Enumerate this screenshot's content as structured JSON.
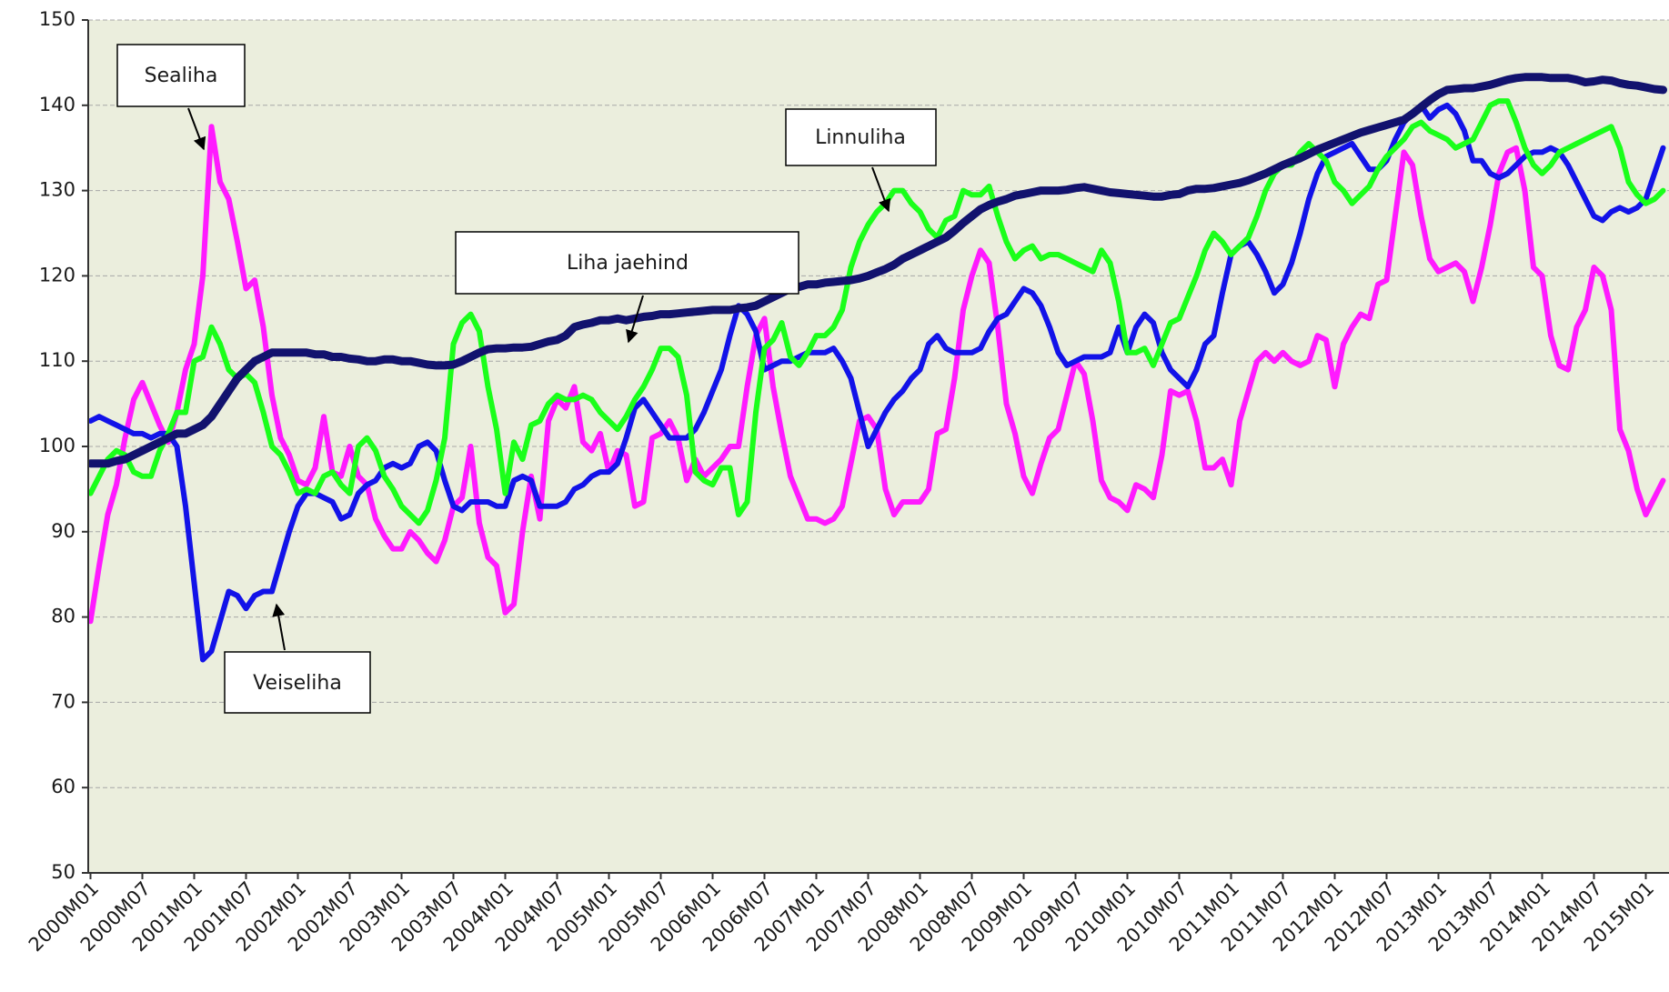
{
  "chart_data": {
    "type": "line",
    "categories": [
      "2000M01",
      null,
      null,
      null,
      null,
      null,
      "2000M07",
      null,
      null,
      null,
      null,
      null,
      "2001M01",
      null,
      null,
      null,
      null,
      null,
      "2001M07",
      null,
      null,
      null,
      null,
      null,
      "2002M01",
      null,
      null,
      null,
      null,
      null,
      "2002M07",
      null,
      null,
      null,
      null,
      null,
      "2003M01",
      null,
      null,
      null,
      null,
      null,
      "2003M07",
      null,
      null,
      null,
      null,
      null,
      "2004M01",
      null,
      null,
      null,
      null,
      null,
      "2004M07",
      null,
      null,
      null,
      null,
      null,
      "2005M01",
      null,
      null,
      null,
      null,
      null,
      "2005M07",
      null,
      null,
      null,
      null,
      null,
      "2006M01",
      null,
      null,
      null,
      null,
      null,
      "2006M07",
      null,
      null,
      null,
      null,
      null,
      "2007M01",
      null,
      null,
      null,
      null,
      null,
      "2007M07",
      null,
      null,
      null,
      null,
      null,
      "2008M01",
      null,
      null,
      null,
      null,
      null,
      "2008M07",
      null,
      null,
      null,
      null,
      null,
      "2009M01",
      null,
      null,
      null,
      null,
      null,
      "2009M07",
      null,
      null,
      null,
      null,
      null,
      "2010M01",
      null,
      null,
      null,
      null,
      null,
      "2010M07",
      null,
      null,
      null,
      null,
      null,
      "2011M01",
      null,
      null,
      null,
      null,
      null,
      "2011M07",
      null,
      null,
      null,
      null,
      null,
      "2012M01",
      null,
      null,
      null,
      null,
      null,
      "2012M07",
      null,
      null,
      null,
      null,
      null,
      "2013M01",
      null,
      null,
      null,
      null,
      null,
      "2013M07",
      null,
      null,
      null,
      null,
      null,
      "2014M01",
      null,
      null,
      null,
      null,
      null,
      "2014M07",
      null,
      null,
      null,
      null,
      null,
      "2015M01",
      null,
      null
    ],
    "series": [
      {
        "name": "Sealiha",
        "color": "#ff1aff",
        "values": [
          79.5,
          86,
          92,
          95.5,
          101,
          105.5,
          107.5,
          105,
          102.5,
          100.5,
          104,
          109,
          112,
          120,
          137.5,
          131,
          129,
          124,
          118.5,
          119.5,
          114,
          106,
          101,
          99,
          96,
          95.5,
          97.5,
          103.5,
          97,
          96.5,
          100,
          96.5,
          95.5,
          91.5,
          89.5,
          88,
          88,
          90,
          89,
          87.5,
          86.5,
          89,
          93,
          94,
          100,
          91,
          87,
          86,
          80.5,
          81.5,
          90,
          96.5,
          91.5,
          103,
          105.5,
          104.5,
          107,
          100.5,
          99.5,
          101.5,
          97,
          99.5,
          99,
          93,
          93.5,
          101,
          101.5,
          103,
          101,
          96,
          98.5,
          96.5,
          97.5,
          98.5,
          100,
          100,
          107,
          113,
          115,
          107,
          101.5,
          96.5,
          94,
          91.5,
          91.5,
          91,
          91.5,
          93,
          98,
          103,
          103.5,
          102,
          95,
          92,
          93.5,
          93.5,
          93.5,
          95,
          101.5,
          102,
          108,
          116,
          120,
          123,
          121.5,
          114,
          105,
          101.5,
          96.5,
          94.5,
          98,
          101,
          102,
          106,
          110,
          108.5,
          103,
          96,
          94,
          93.5,
          92.5,
          95.5,
          95,
          94,
          99,
          106.5,
          106,
          106.5,
          103,
          97.5,
          97.5,
          98.5,
          95.5,
          103,
          106.5,
          110,
          111,
          110,
          111,
          110,
          109.5,
          110,
          113,
          112.5,
          107,
          112,
          114,
          115.5,
          115,
          119,
          119.5,
          127,
          134.5,
          133,
          127,
          122,
          120.5,
          121,
          121.5,
          120.5,
          117,
          121,
          126,
          132,
          134.5,
          135,
          130,
          121,
          120,
          113,
          109.5,
          109,
          114,
          116,
          121,
          120,
          116,
          102,
          99.5,
          95,
          92,
          94,
          96
        ]
      },
      {
        "name": "Veiseliha",
        "color": "#1212e8",
        "values": [
          103,
          103.5,
          103,
          102.5,
          102,
          101.5,
          101.5,
          101,
          101.5,
          101.5,
          100,
          93,
          84,
          75,
          76,
          79.5,
          83,
          82.5,
          81,
          82.5,
          83,
          83,
          86.5,
          90,
          93,
          94.5,
          94.5,
          94,
          93.5,
          91.5,
          92,
          94.5,
          95.5,
          96,
          97.5,
          98,
          97.5,
          98,
          100,
          100.5,
          99.5,
          96,
          93,
          92.5,
          93.5,
          93.5,
          93.5,
          93,
          93,
          96,
          96.5,
          96,
          93,
          93,
          93,
          93.5,
          95,
          95.5,
          96.5,
          97,
          97,
          98,
          101,
          104.5,
          105.5,
          104,
          102.5,
          101,
          101,
          101,
          102,
          104,
          106.5,
          109,
          113,
          116.5,
          115.5,
          113.5,
          109,
          109.5,
          110,
          110,
          110.5,
          111,
          111,
          111,
          111.5,
          110,
          108,
          104,
          100,
          102,
          104,
          105.5,
          106.5,
          108,
          109,
          112,
          113,
          111.5,
          111,
          111,
          111,
          111.5,
          113.5,
          115,
          115.5,
          117,
          118.5,
          118,
          116.5,
          114,
          111,
          109.5,
          110,
          110.5,
          110.5,
          110.5,
          111,
          114,
          111,
          114,
          115.5,
          114.5,
          111,
          109,
          108,
          107,
          109,
          112,
          113,
          118,
          122.5,
          123.5,
          124,
          122.5,
          120.5,
          118,
          119,
          121.5,
          125,
          129,
          132,
          134,
          134.5,
          135,
          135.5,
          134,
          132.5,
          132.5,
          133.5,
          136,
          138,
          139,
          140,
          138.5,
          139.5,
          140,
          139,
          137,
          133.5,
          133.5,
          132,
          131.5,
          132,
          133,
          134,
          134.5,
          134.5,
          135,
          134.5,
          133,
          131,
          129,
          127,
          126.5,
          127.5,
          128,
          127.5,
          128,
          129,
          132,
          135
        ]
      },
      {
        "name": "Linnuliha",
        "color": "#1aff1a",
        "values": [
          94.5,
          96.5,
          98.5,
          99.5,
          99,
          97,
          96.5,
          96.5,
          99.5,
          101.5,
          104,
          104,
          110,
          110.5,
          114,
          112,
          109,
          108,
          108.5,
          107.5,
          104,
          100,
          99,
          97,
          94.5,
          95,
          94.5,
          96.5,
          97,
          95.5,
          94.5,
          100,
          101,
          99.5,
          96.5,
          95,
          93,
          92,
          91,
          92.5,
          96,
          101,
          112,
          114.5,
          115.5,
          113.5,
          107,
          102,
          94.5,
          100.5,
          98.5,
          102.5,
          103,
          105,
          106,
          105.5,
          105.5,
          106,
          105.5,
          104,
          103,
          102,
          103.5,
          105.5,
          107,
          109,
          111.5,
          111.5,
          110.5,
          106,
          97,
          96,
          95.5,
          97.5,
          97.5,
          92,
          93.5,
          104,
          111.5,
          112.5,
          114.5,
          110.5,
          109.5,
          111,
          113,
          113,
          114,
          116,
          121,
          124,
          126,
          127.5,
          128.5,
          130,
          130,
          128.5,
          127.5,
          125.5,
          124.5,
          126.5,
          127,
          130,
          129.5,
          129.5,
          130.5,
          127,
          124,
          122,
          123,
          123.5,
          122,
          122.5,
          122.5,
          122,
          121.5,
          121,
          120.5,
          123,
          121.5,
          117,
          111,
          111,
          111.5,
          109.5,
          112,
          114.5,
          115,
          117.5,
          120,
          123,
          125,
          124,
          122.5,
          123.5,
          124.5,
          127,
          130,
          132,
          133,
          133,
          134.5,
          135.5,
          134.5,
          133.5,
          131,
          130,
          128.5,
          129.5,
          130.5,
          132.5,
          134,
          135,
          136,
          137.5,
          138,
          137,
          136.5,
          136,
          135,
          135.5,
          136,
          138,
          140,
          140.5,
          140.5,
          138,
          135,
          133,
          132,
          133,
          134.5,
          135,
          135.5,
          136,
          136.5,
          137,
          137.5,
          135,
          131,
          129.5,
          128.5,
          129,
          130
        ]
      },
      {
        "name": "Liha jaehind",
        "color": "#12126e",
        "values": [
          98,
          98,
          98,
          98.3,
          98.5,
          99,
          99.5,
          100,
          100.5,
          101,
          101.5,
          101.5,
          102,
          102.5,
          103.5,
          105,
          106.5,
          108,
          109,
          110,
          110.5,
          111,
          111,
          111,
          111,
          111,
          110.8,
          110.8,
          110.5,
          110.5,
          110.3,
          110.2,
          110,
          110,
          110.2,
          110.2,
          110,
          110,
          109.8,
          109.6,
          109.5,
          109.5,
          109.6,
          110,
          110.5,
          111,
          111.4,
          111.5,
          111.5,
          111.6,
          111.6,
          111.7,
          112,
          112.3,
          112.5,
          113,
          114,
          114.3,
          114.5,
          114.8,
          114.8,
          115,
          114.8,
          115,
          115.2,
          115.3,
          115.5,
          115.5,
          115.6,
          115.7,
          115.8,
          115.9,
          116,
          116,
          116,
          116.2,
          116.3,
          116.5,
          117,
          117.5,
          118,
          118.5,
          118.7,
          119,
          119,
          119.2,
          119.3,
          119.4,
          119.5,
          119.7,
          120,
          120.4,
          120.8,
          121.3,
          122,
          122.5,
          123,
          123.5,
          124,
          124.5,
          125.3,
          126.2,
          127,
          127.8,
          128.3,
          128.7,
          129,
          129.4,
          129.6,
          129.8,
          130,
          130,
          130,
          130.1,
          130.3,
          130.4,
          130.2,
          130,
          129.8,
          129.7,
          129.6,
          129.5,
          129.4,
          129.3,
          129.3,
          129.5,
          129.6,
          130,
          130.2,
          130.2,
          130.3,
          130.5,
          130.7,
          130.9,
          131.2,
          131.6,
          132,
          132.5,
          133,
          133.4,
          133.8,
          134.3,
          134.8,
          135.2,
          135.6,
          136,
          136.4,
          136.8,
          137.1,
          137.4,
          137.7,
          138,
          138.3,
          139,
          139.8,
          140.6,
          141.3,
          141.8,
          141.9,
          142,
          142,
          142.2,
          142.4,
          142.7,
          143,
          143.2,
          143.3,
          143.3,
          143.3,
          143.2,
          143.2,
          143.2,
          143,
          142.7,
          142.8,
          143,
          142.9,
          142.6,
          142.4,
          142.3,
          142.1,
          141.9,
          141.8
        ]
      }
    ],
    "ylim": [
      50,
      150
    ],
    "yticks": [
      50,
      60,
      70,
      80,
      90,
      100,
      110,
      120,
      130,
      140,
      150
    ],
    "grid": true
  }
}
